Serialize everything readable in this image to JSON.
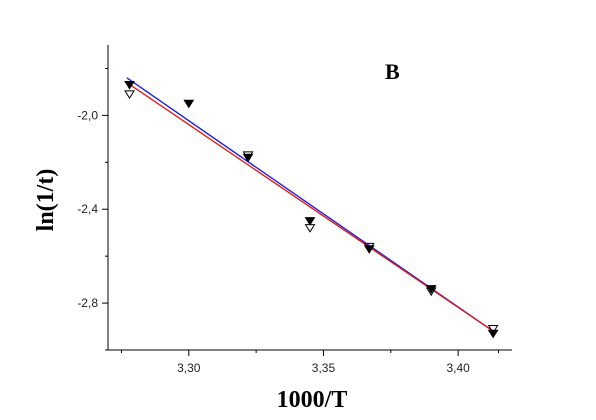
{
  "chart_data": {
    "type": "scatter",
    "panel_label": "B",
    "xlabel": "1000/T",
    "ylabel": "ln(1/t)",
    "xlim": [
      3.27,
      3.42
    ],
    "ylim": [
      -3.0,
      -1.7
    ],
    "x_ticks": [
      3.3,
      3.35,
      3.4
    ],
    "x_tick_labels": [
      "3,30",
      "3,35",
      "3,40"
    ],
    "x_minor_ticks": [
      3.275,
      3.325,
      3.375,
      3.415
    ],
    "y_ticks": [
      -2.0,
      -2.4,
      -2.8
    ],
    "y_tick_labels": [
      "-2,0",
      "-2,4",
      "-2,8"
    ],
    "y_minor_ticks": [
      -1.8,
      -2.2,
      -2.6,
      -3.0
    ],
    "grid": false,
    "legend": "none",
    "series": [
      {
        "marker": "filled-down-triangle",
        "color": "#000000",
        "x": [
          3.278,
          3.3,
          3.322,
          3.345,
          3.367,
          3.39,
          3.413
        ],
        "y": [
          -1.87,
          -1.95,
          -2.18,
          -2.45,
          -2.57,
          -2.74,
          -2.93
        ]
      },
      {
        "marker": "open-down-triangle",
        "color": "#000000",
        "x": [
          3.278,
          3.322,
          3.345,
          3.367,
          3.39,
          3.413
        ],
        "y": [
          -1.91,
          -2.17,
          -2.48,
          -2.56,
          -2.75,
          -2.91
        ]
      },
      {
        "type": "fit-line",
        "color": "#1f1fd6",
        "x": [
          3.277,
          3.413
        ],
        "y": [
          -1.84,
          -2.92
        ]
      },
      {
        "type": "fit-line",
        "color": "#e02020",
        "x": [
          3.277,
          3.413
        ],
        "y": [
          -1.86,
          -2.92
        ]
      }
    ]
  }
}
